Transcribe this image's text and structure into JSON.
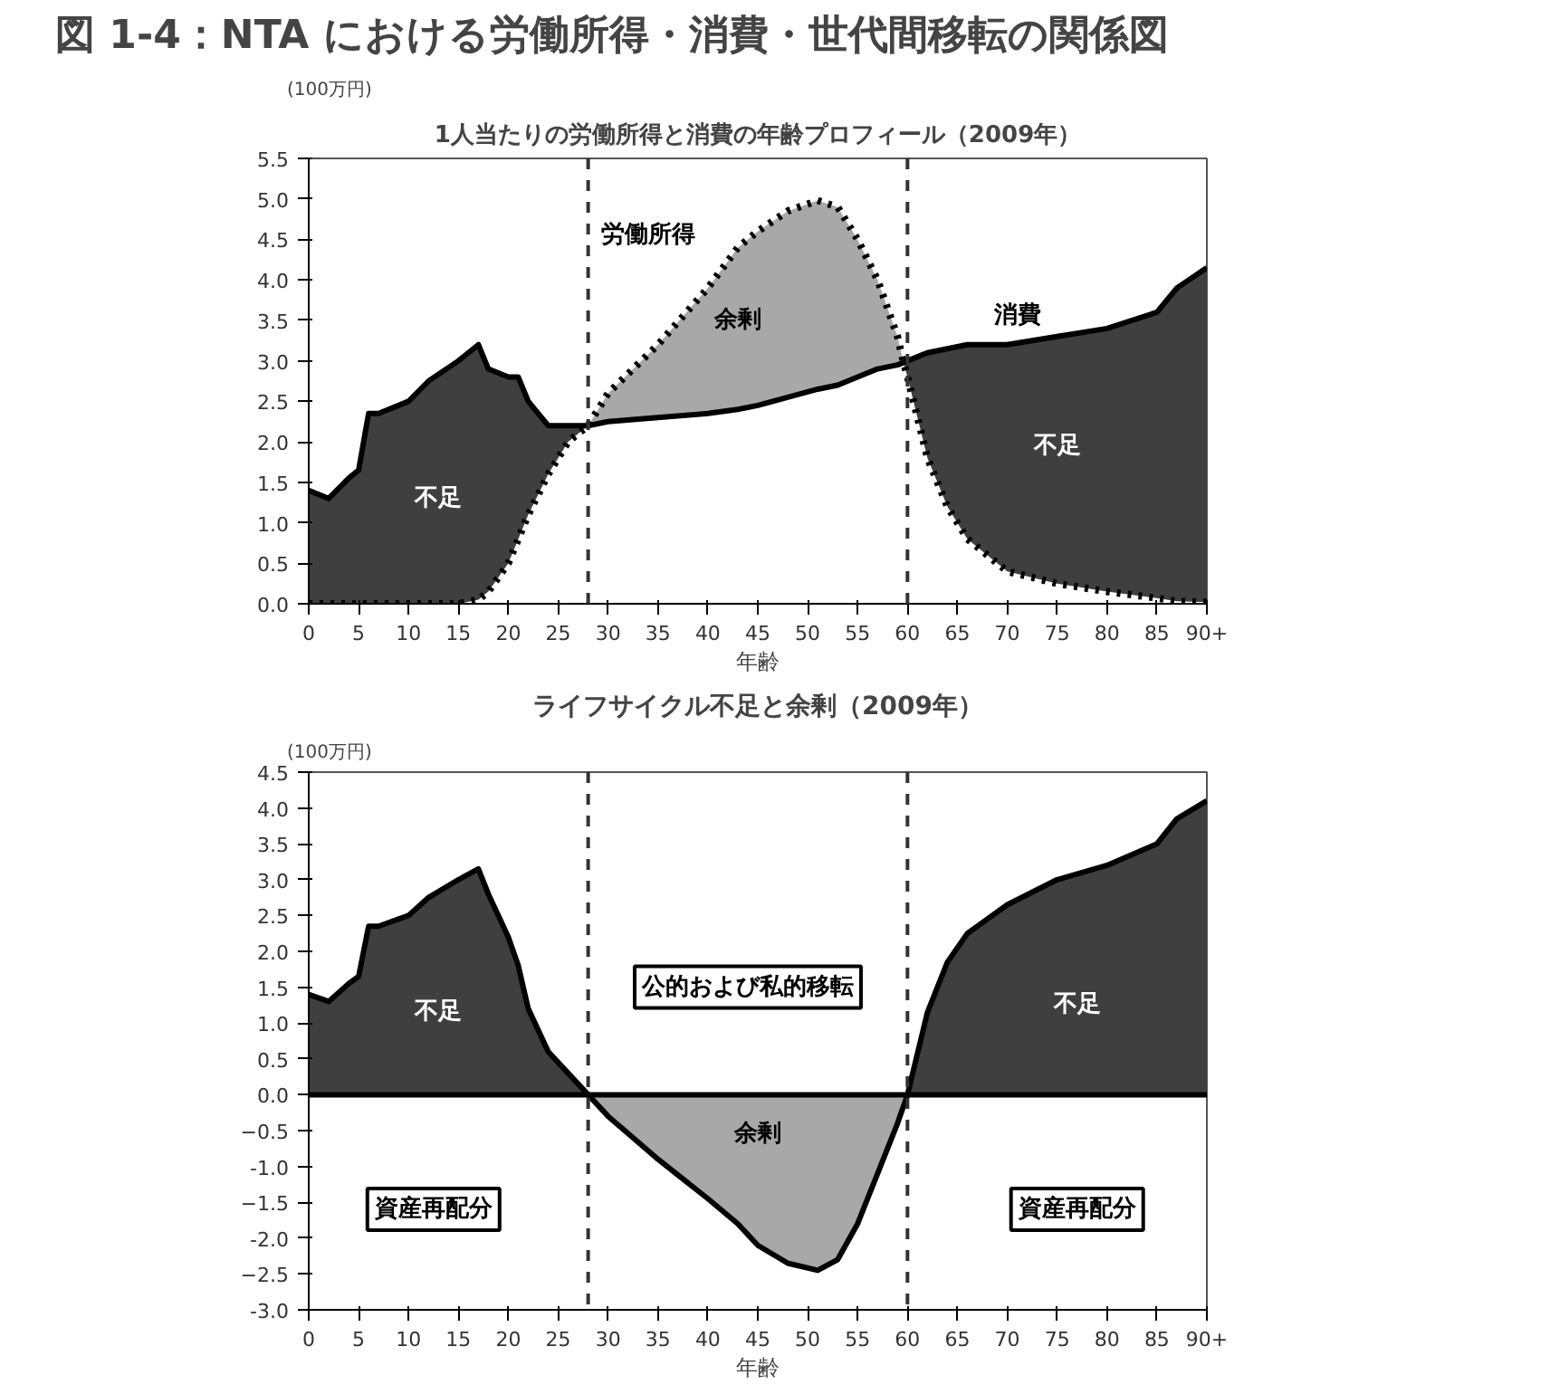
{
  "chart_data": [
    {
      "type": "line",
      "title": "図 1-4：NTA における労働所得・消費・世代間移転の関係図",
      "subtitle": "1人当たりの労働所得と消費の年齢プロフィール（2009年）",
      "xlabel": "年齢",
      "ylabel": "(100万円)",
      "x": [
        0,
        2,
        4,
        5,
        6,
        7,
        10,
        12,
        15,
        17,
        18,
        20,
        21,
        22,
        23,
        24,
        26,
        28,
        30,
        35,
        40,
        43,
        45,
        48,
        51,
        53,
        55,
        57,
        59,
        59.6,
        60,
        62,
        64,
        66,
        70,
        75,
        80,
        85,
        87,
        90
      ],
      "series": [
        {
          "color": "#000000",
          "line_style": "solid",
          "values": [
            1.4,
            1.3,
            1.55,
            1.65,
            2.35,
            2.35,
            2.5,
            2.75,
            3.0,
            3.2,
            2.9,
            2.8,
            2.8,
            2.5,
            2.35,
            2.2,
            2.2,
            2.2,
            2.25,
            2.3,
            2.35,
            2.4,
            2.45,
            2.55,
            2.65,
            2.7,
            2.8,
            2.9,
            2.95,
            2.98,
            3.0,
            3.1,
            3.15,
            3.2,
            3.2,
            3.3,
            3.4,
            3.6,
            3.9,
            4.15
          ],
          "lower": [
            0,
            0,
            0,
            0,
            0,
            0,
            0,
            0,
            0,
            0.05,
            0.15,
            0.5,
            0.8,
            1.1,
            1.35,
            1.6,
            2.0,
            2.2,
            null,
            null,
            null,
            null,
            null,
            null,
            null,
            null,
            null,
            null,
            null,
            2.98,
            2.8,
            1.8,
            1.2,
            0.8,
            0.4,
            0.25,
            0.15,
            0.07,
            0.03,
            0.02
          ],
          "upper": [
            1.4,
            1.3,
            1.55,
            1.65,
            2.35,
            2.35,
            2.5,
            2.75,
            3.0,
            3.2,
            2.9,
            2.8,
            2.8,
            2.5,
            2.35,
            2.2,
            2.2,
            2.2,
            null,
            null,
            null,
            null,
            null,
            null,
            null,
            null,
            null,
            null,
            null,
            2.98,
            3.0,
            3.1,
            3.15,
            3.2,
            3.2,
            3.3,
            3.4,
            3.6,
            3.9,
            4.15
          ]
        },
        {
          "color": "#000000",
          "line_style": "dotted",
          "values": [
            0,
            0,
            0,
            0,
            0,
            0,
            0,
            0,
            0,
            0.05,
            0.15,
            0.5,
            0.8,
            1.1,
            1.35,
            1.6,
            2.0,
            2.2,
            2.6,
            3.2,
            3.9,
            4.4,
            4.6,
            4.85,
            4.98,
            4.9,
            4.5,
            4.0,
            3.3,
            2.98,
            2.8,
            1.8,
            1.2,
            0.8,
            0.4,
            0.25,
            0.15,
            0.07,
            0.03,
            0.02
          ],
          "lower": [
            null,
            null,
            null,
            null,
            null,
            null,
            null,
            null,
            null,
            null,
            null,
            null,
            null,
            null,
            null,
            null,
            null,
            2.2,
            2.25,
            2.3,
            2.35,
            2.4,
            2.45,
            2.55,
            2.65,
            2.7,
            2.8,
            2.9,
            2.95,
            2.98,
            null,
            null,
            null,
            null,
            null,
            null,
            null,
            null,
            null,
            null
          ],
          "upper": [
            null,
            null,
            null,
            null,
            null,
            null,
            null,
            null,
            null,
            null,
            null,
            null,
            null,
            null,
            null,
            null,
            null,
            2.2,
            2.6,
            3.2,
            3.9,
            4.4,
            4.6,
            4.85,
            4.98,
            4.9,
            4.5,
            4.0,
            3.3,
            2.98,
            null,
            null,
            null,
            null,
            null,
            null,
            null,
            null,
            null,
            null
          ]
        }
      ],
      "xlim": [
        0,
        90
      ],
      "ylim": [
        0,
        5.5
      ],
      "xticks": [
        0,
        5,
        10,
        15,
        20,
        25,
        30,
        35,
        40,
        45,
        50,
        55,
        60,
        65,
        70,
        75,
        80,
        85,
        {
          "value": 90,
          "label": "90+"
        }
      ],
      "yticks": [
        {
          "value": 0,
          "label": "0.0"
        },
        0.5,
        {
          "value": 1,
          "label": "1.0"
        },
        1.5,
        {
          "value": 2,
          "label": "2.0"
        },
        2.5,
        {
          "value": 3,
          "label": "3.0"
        },
        3.5,
        {
          "value": 4,
          "label": "4.0"
        },
        4.5,
        {
          "value": 5,
          "label": "5.0"
        },
        5.5
      ],
      "ref_lines": [
        {
          "axis": "x",
          "value": 28,
          "line_style": "dashed"
        },
        {
          "axis": "x",
          "value": 60,
          "line_style": "dashed"
        }
      ],
      "annotations": [
        "労働所得",
        "消費",
        "余剰",
        "不足",
        "不足"
      ]
    },
    {
      "type": "area",
      "title": "ライフサイクル不足と余剰（2009年）",
      "xlabel": "年齢",
      "ylabel": "(100万円)",
      "x": [
        0,
        2,
        4,
        5,
        6,
        7,
        10,
        12,
        15,
        17,
        18,
        20,
        21,
        22,
        23,
        24,
        26,
        28,
        30,
        35,
        40,
        43,
        45,
        48,
        51,
        53,
        55,
        57,
        59,
        60,
        62,
        64,
        66,
        70,
        75,
        80,
        85,
        87,
        90
      ],
      "series": [
        {
          "color": "#3f3f3f",
          "values": [
            1.4,
            1.3,
            1.55,
            1.65,
            2.35,
            2.35,
            2.5,
            2.75,
            3.0,
            3.15,
            2.8,
            2.2,
            1.8,
            1.2,
            0.9,
            0.6,
            0.3,
            0.0,
            null,
            null,
            null,
            null,
            null,
            null,
            null,
            null,
            null,
            null,
            null,
            0.0,
            1.15,
            1.85,
            2.25,
            2.65,
            3.0,
            3.2,
            3.5,
            3.85,
            4.1
          ]
        },
        {
          "color": "#a8a8a8",
          "values": [
            null,
            null,
            null,
            null,
            null,
            null,
            null,
            null,
            null,
            null,
            null,
            null,
            null,
            null,
            null,
            null,
            null,
            0.0,
            -0.3,
            -0.9,
            -1.45,
            -1.8,
            -2.1,
            -2.35,
            -2.45,
            -2.3,
            -1.8,
            -1.1,
            -0.4,
            0.0,
            null,
            null,
            null,
            null,
            null,
            null,
            null,
            null,
            null
          ]
        }
      ],
      "xlim": [
        0,
        90
      ],
      "ylim": [
        -3,
        4.5
      ],
      "xticks": [
        0,
        5,
        10,
        15,
        20,
        25,
        30,
        35,
        40,
        45,
        50,
        55,
        60,
        65,
        70,
        75,
        80,
        85,
        {
          "value": 90,
          "label": "90+"
        }
      ],
      "yticks": [
        {
          "value": -3,
          "label": "-3.0"
        },
        -2.5,
        {
          "value": -2,
          "label": "-2.0"
        },
        -1.5,
        {
          "value": -1,
          "label": "-1.0"
        },
        -0.5,
        {
          "value": 0,
          "label": "0.0"
        },
        0.5,
        {
          "value": 1,
          "label": "1.0"
        },
        1.5,
        {
          "value": 2,
          "label": "2.0"
        },
        2.5,
        {
          "value": 3,
          "label": "3.0"
        },
        3.5,
        {
          "value": 4,
          "label": "4.0"
        },
        4.5
      ],
      "ref_lines": [
        {
          "axis": "x",
          "value": 28,
          "line_style": "dashed"
        },
        {
          "axis": "x",
          "value": 60,
          "line_style": "dashed"
        }
      ],
      "annotations": [
        "不足",
        "不足",
        "余剰",
        "公的および私的移転",
        "資産再配分",
        "資産再配分"
      ]
    }
  ]
}
